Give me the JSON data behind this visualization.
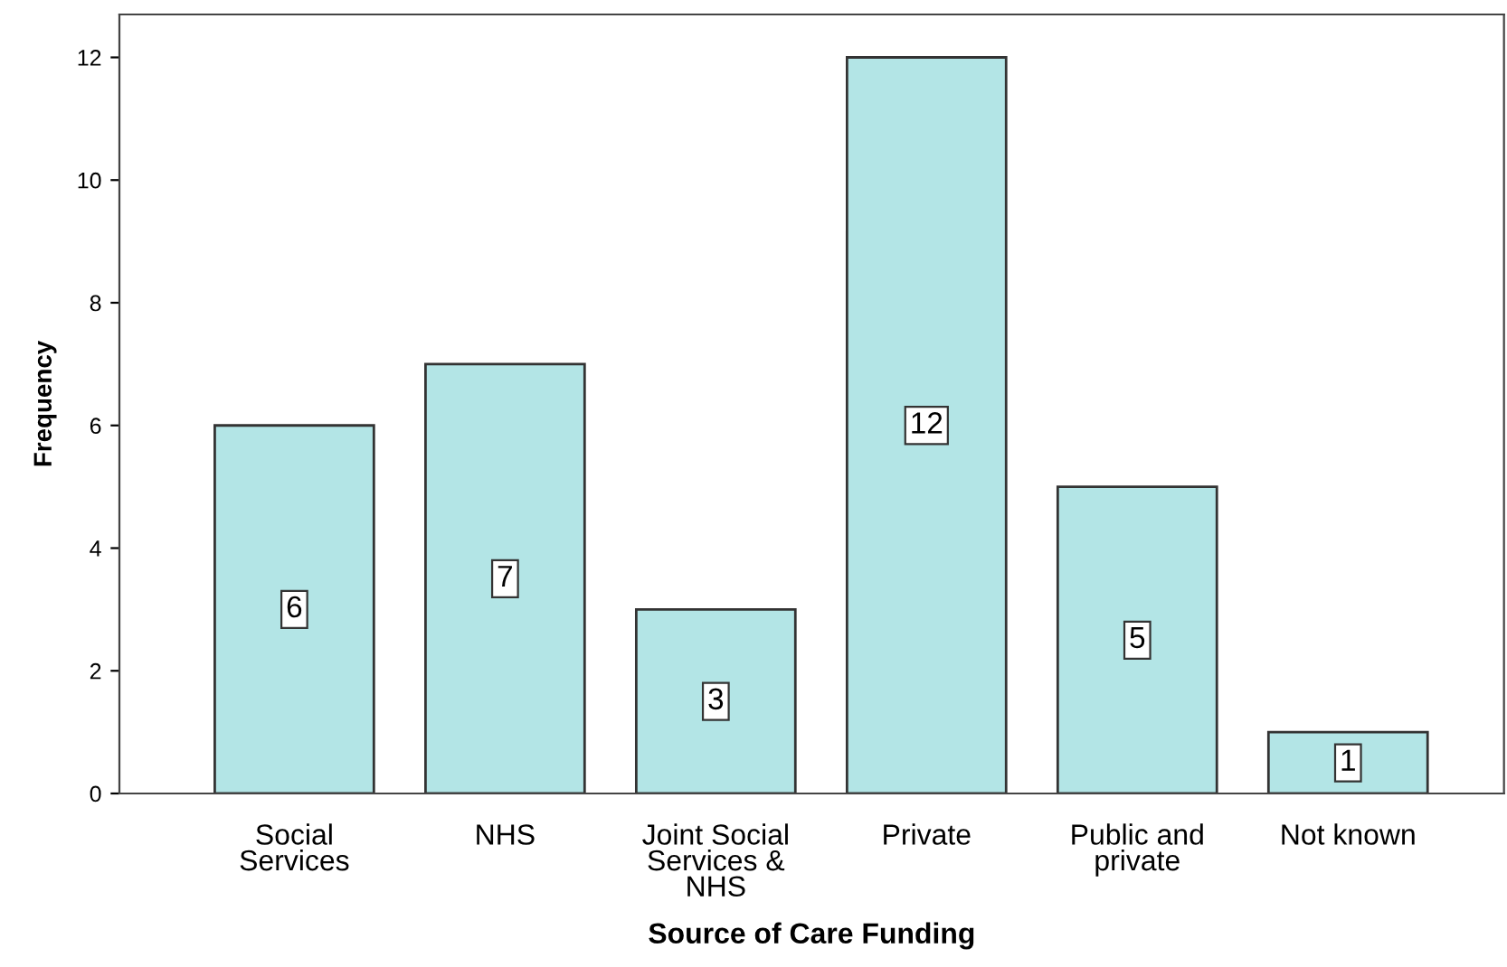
{
  "chart_data": {
    "type": "bar",
    "xlabel": "Source of Care Funding",
    "ylabel": "Frequency",
    "categories": [
      "Social\nServices",
      "NHS",
      "Joint Social\nServices &\nNHS",
      "Private",
      "Public and\nprivate",
      "Not known"
    ],
    "values": [
      6,
      7,
      3,
      12,
      5,
      1
    ],
    "color": "#b3e5e6",
    "ylim": [
      0,
      12.7
    ],
    "yticks": [
      0,
      2,
      4,
      6,
      8,
      10,
      12
    ],
    "grid": false,
    "data_labels": true
  }
}
